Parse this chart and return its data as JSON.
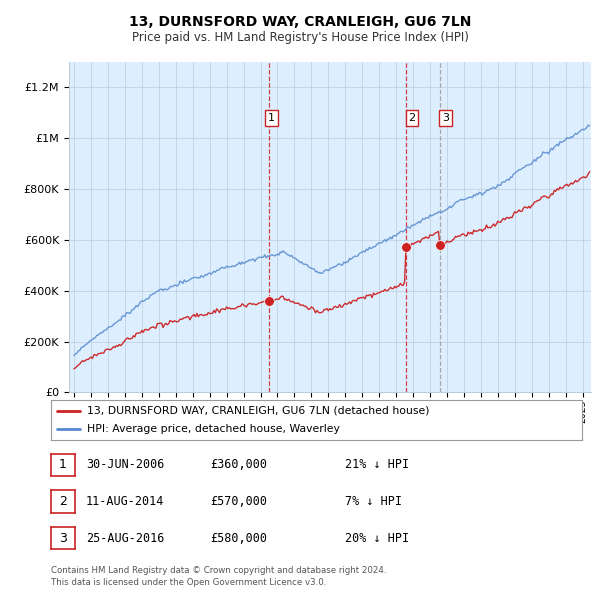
{
  "title": "13, DURNSFORD WAY, CRANLEIGH, GU6 7LN",
  "subtitle": "Price paid vs. HM Land Registry's House Price Index (HPI)",
  "legend_label_red": "13, DURNSFORD WAY, CRANLEIGH, GU6 7LN (detached house)",
  "legend_label_blue": "HPI: Average price, detached house, Waverley",
  "transactions": [
    {
      "num": 1,
      "date": "30-JUN-2006",
      "price": 360000,
      "pct": "21%",
      "dir": "↓"
    },
    {
      "num": 2,
      "date": "11-AUG-2014",
      "price": 570000,
      "pct": "7%",
      "dir": "↓"
    },
    {
      "num": 3,
      "date": "25-AUG-2016",
      "price": 580000,
      "pct": "20%",
      "dir": "↓"
    }
  ],
  "trans_dates": [
    2006.5,
    2014.58,
    2016.58
  ],
  "trans_vline_styles": [
    "red_dashed",
    "red_dashed",
    "grey_dashed"
  ],
  "footer1": "Contains HM Land Registry data © Crown copyright and database right 2024.",
  "footer2": "This data is licensed under the Open Government Licence v3.0.",
  "ylim": [
    0,
    1300000
  ],
  "yticks": [
    0,
    200000,
    400000,
    600000,
    800000,
    1000000,
    1200000
  ],
  "background_color": "#ffffff",
  "chart_bg_color": "#ddeeff",
  "grid_color": "#bbccdd",
  "red_color": "#cc2222",
  "blue_color": "#5588cc",
  "red_vline_color": "#cc2222",
  "grey_vline_color": "#999999",
  "seed": 17
}
